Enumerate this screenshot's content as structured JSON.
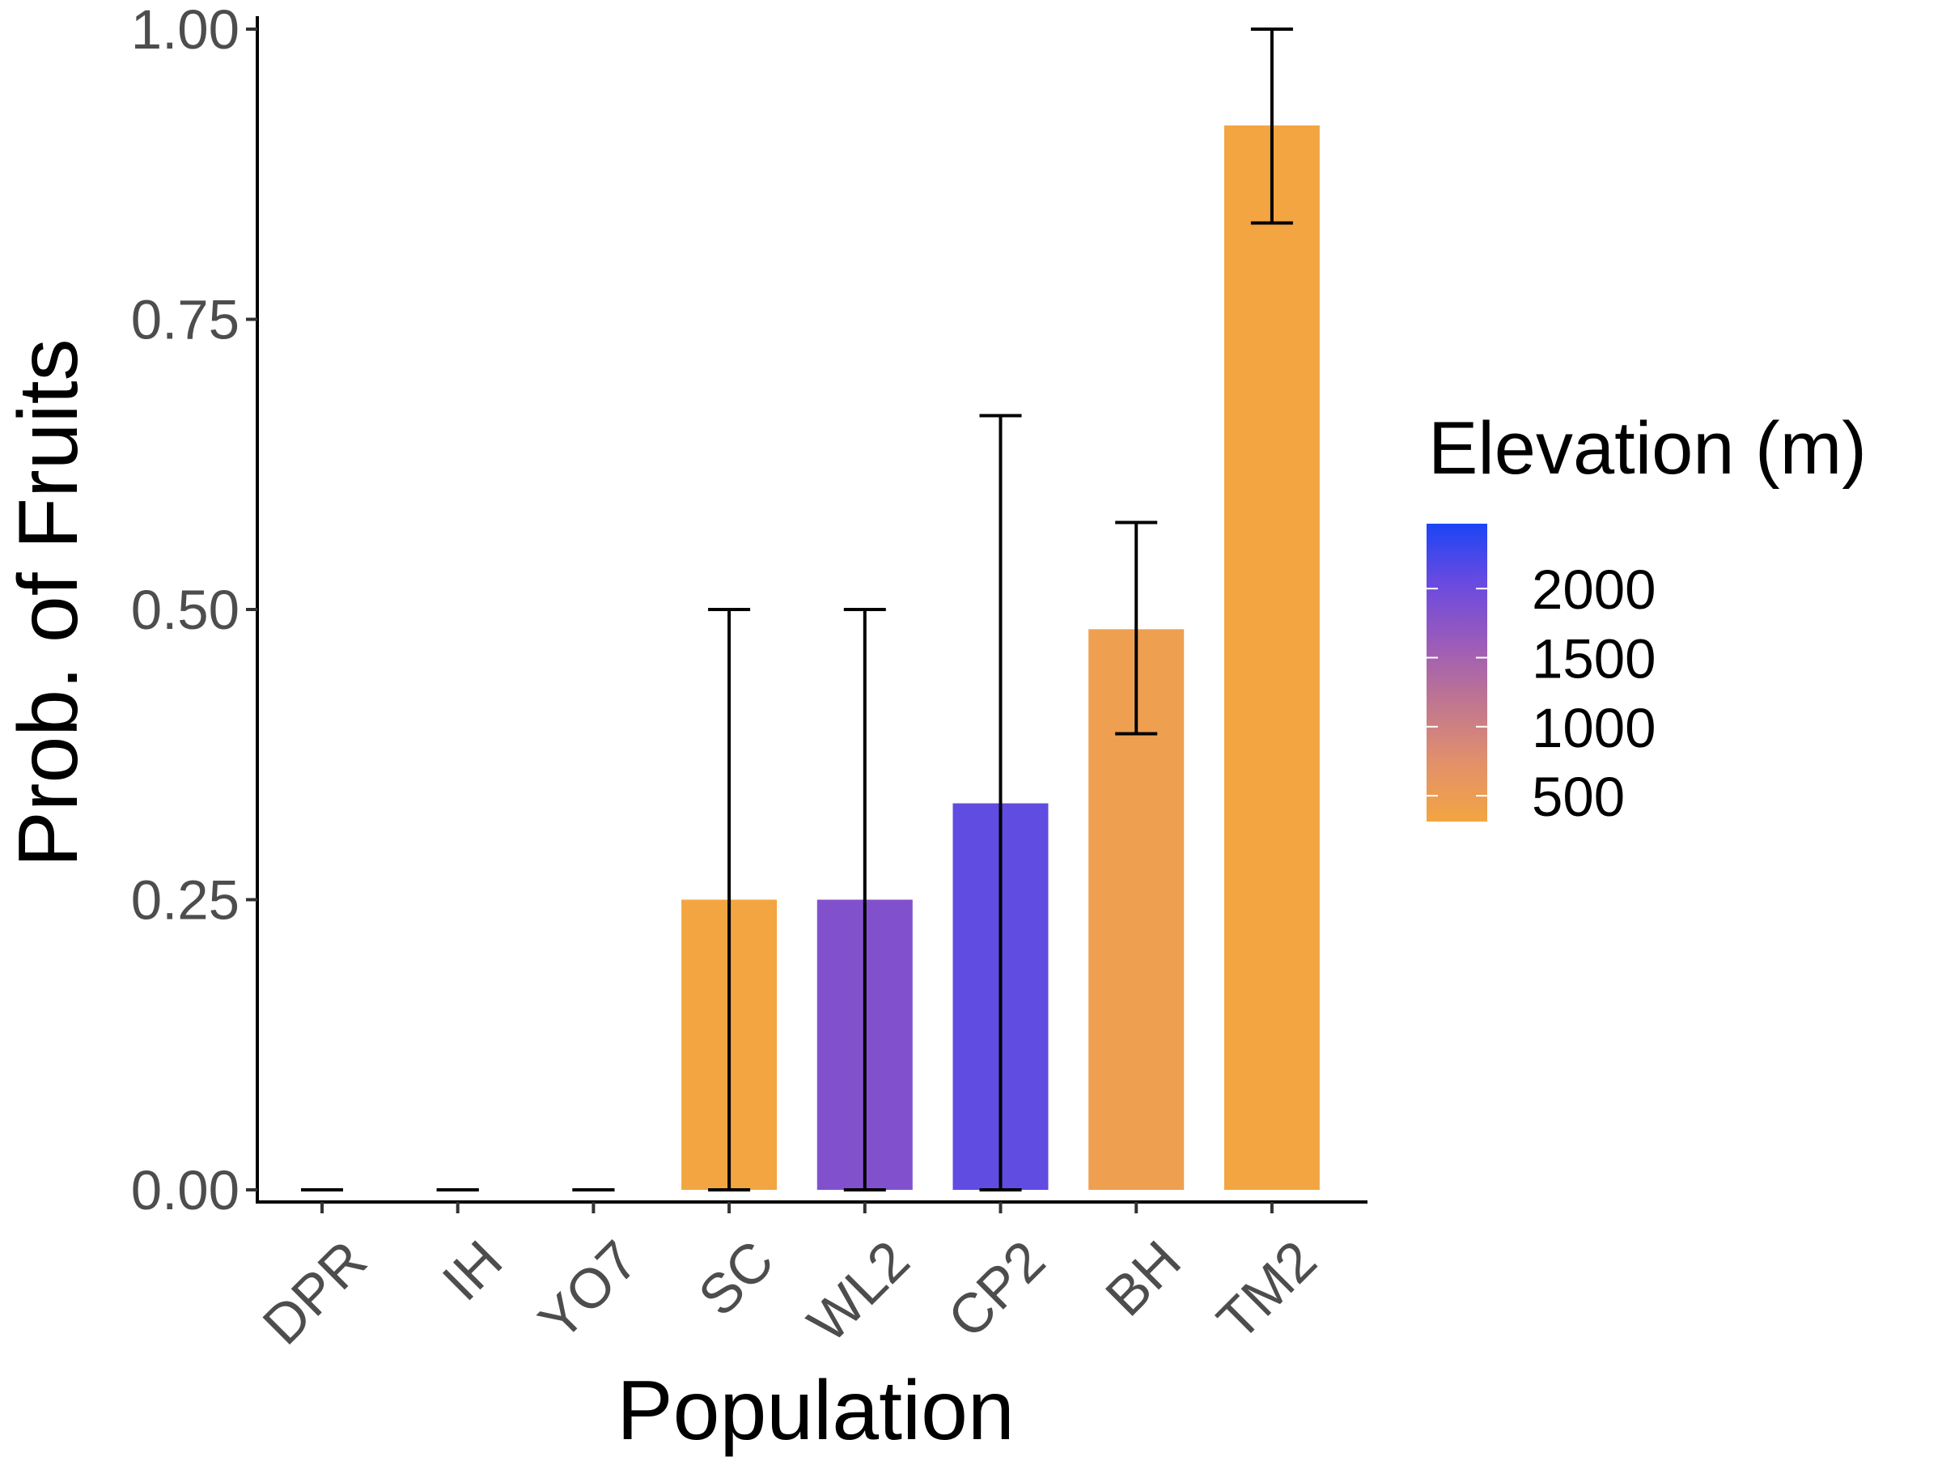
{
  "chart_data": {
    "type": "bar",
    "title": "",
    "xlabel": "Population",
    "ylabel": "Prob. of Fruits",
    "ylim": [
      0,
      1.0
    ],
    "y_ticks": [
      0.0,
      0.25,
      0.5,
      0.75,
      1.0
    ],
    "y_tick_labels": [
      "0.00",
      "0.25",
      "0.50",
      "0.75",
      "1.00"
    ],
    "categories": [
      "DPR",
      "IH",
      "YO7",
      "SC",
      "WL2",
      "CP2",
      "BH",
      "TM2"
    ],
    "values": [
      0.0,
      0.0,
      0.0,
      0.25,
      0.25,
      0.333,
      0.483,
      0.917
    ],
    "error_low": [
      0.0,
      0.0,
      0.0,
      0.0,
      0.0,
      0.0,
      0.393,
      0.833
    ],
    "error_high": [
      0.0,
      0.0,
      0.0,
      0.5,
      0.5,
      0.667,
      0.575,
      1.0
    ],
    "bar_colors": [
      "#f3a541",
      "#f3a541",
      "#f3a541",
      "#f3a541",
      "#8151cd",
      "#604ce0",
      "#eea050",
      "#f3a541"
    ],
    "grid": false,
    "legend": {
      "title": "Elevation (m)",
      "placement": "right",
      "type": "colorbar",
      "colors_low_to_high": [
        "#f3a541",
        "#e2906b",
        "#c07690",
        "#9b5bba",
        "#6a4ae0",
        "#1c45f5"
      ],
      "ticks": [
        500,
        1000,
        1500,
        2000
      ],
      "tick_labels": [
        "500",
        "1000",
        "1500",
        "2000"
      ],
      "range": [
        313,
        2470
      ]
    }
  }
}
